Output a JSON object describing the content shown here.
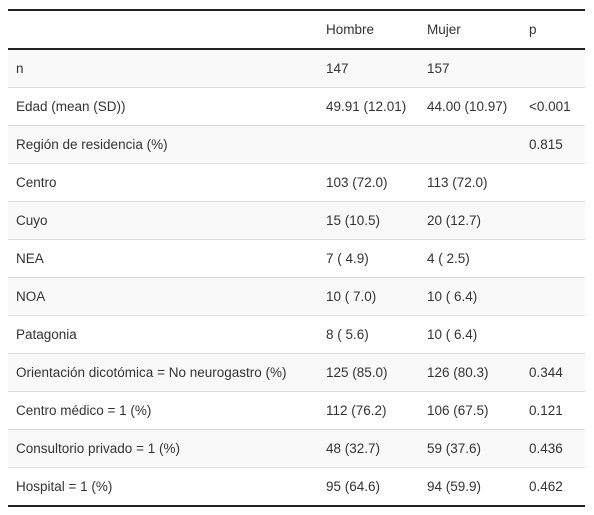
{
  "table": {
    "headers": [
      "",
      "Hombre",
      "Mujer",
      "p"
    ],
    "rows": [
      [
        "n",
        "147",
        "157",
        ""
      ],
      [
        "Edad (mean (SD))",
        "49.91 (12.01)",
        "44.00 (10.97)",
        "<0.001"
      ],
      [
        "Región de residencia (%)",
        "",
        "",
        "0.815"
      ],
      [
        "Centro",
        "103 (72.0)",
        "113 (72.0)",
        ""
      ],
      [
        "Cuyo",
        "15 (10.5)",
        "20 (12.7)",
        ""
      ],
      [
        "NEA",
        "7 ( 4.9)",
        "4 ( 2.5)",
        ""
      ],
      [
        "NOA",
        "10 ( 7.0)",
        "10 ( 6.4)",
        ""
      ],
      [
        "Patagonia",
        "8 ( 5.6)",
        "10 ( 6.4)",
        ""
      ],
      [
        "Orientación dicotómica = No neurogastro (%)",
        "125 (85.0)",
        "126 (80.3)",
        "0.344"
      ],
      [
        "Centro médico = 1 (%)",
        "112 (76.2)",
        "106 (67.5)",
        "0.121"
      ],
      [
        "Consultorio privado = 1 (%)",
        "48 (32.7)",
        "59 (37.6)",
        "0.436"
      ],
      [
        "Hospital = 1 (%)",
        "95 (64.6)",
        "94 (59.9)",
        "0.462"
      ]
    ]
  }
}
